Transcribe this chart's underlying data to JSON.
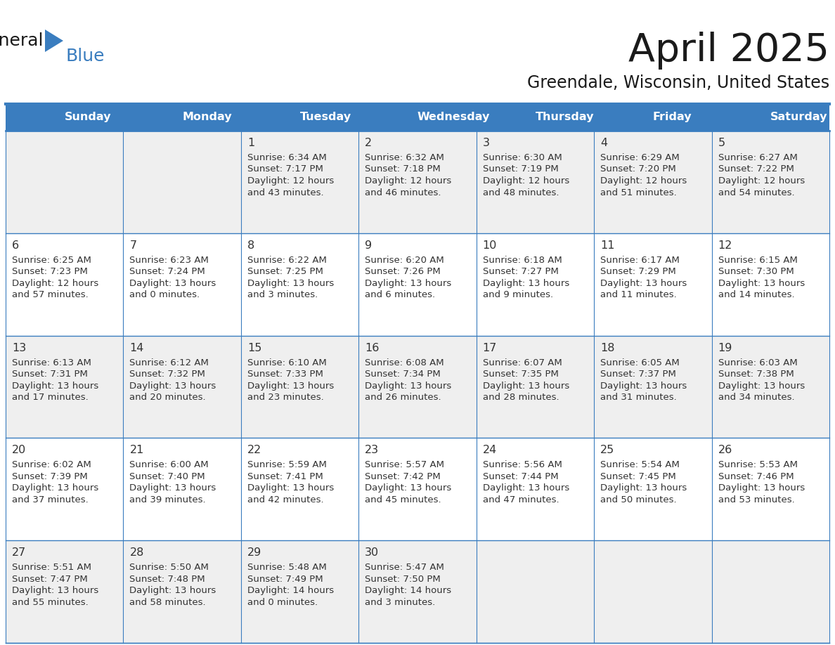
{
  "title": "April 2025",
  "subtitle": "Greendale, Wisconsin, United States",
  "header_bg_color": "#3a7dbf",
  "cell_bg_color_odd": "#efefef",
  "cell_bg_color_even": "#ffffff",
  "border_color": "#3a7dbf",
  "text_color": "#333333",
  "days_of_week": [
    "Sunday",
    "Monday",
    "Tuesday",
    "Wednesday",
    "Thursday",
    "Friday",
    "Saturday"
  ],
  "calendar_data": [
    [
      {
        "day": "",
        "lines": []
      },
      {
        "day": "",
        "lines": []
      },
      {
        "day": "1",
        "lines": [
          "Sunrise: 6:34 AM",
          "Sunset: 7:17 PM",
          "Daylight: 12 hours",
          "and 43 minutes."
        ]
      },
      {
        "day": "2",
        "lines": [
          "Sunrise: 6:32 AM",
          "Sunset: 7:18 PM",
          "Daylight: 12 hours",
          "and 46 minutes."
        ]
      },
      {
        "day": "3",
        "lines": [
          "Sunrise: 6:30 AM",
          "Sunset: 7:19 PM",
          "Daylight: 12 hours",
          "and 48 minutes."
        ]
      },
      {
        "day": "4",
        "lines": [
          "Sunrise: 6:29 AM",
          "Sunset: 7:20 PM",
          "Daylight: 12 hours",
          "and 51 minutes."
        ]
      },
      {
        "day": "5",
        "lines": [
          "Sunrise: 6:27 AM",
          "Sunset: 7:22 PM",
          "Daylight: 12 hours",
          "and 54 minutes."
        ]
      }
    ],
    [
      {
        "day": "6",
        "lines": [
          "Sunrise: 6:25 AM",
          "Sunset: 7:23 PM",
          "Daylight: 12 hours",
          "and 57 minutes."
        ]
      },
      {
        "day": "7",
        "lines": [
          "Sunrise: 6:23 AM",
          "Sunset: 7:24 PM",
          "Daylight: 13 hours",
          "and 0 minutes."
        ]
      },
      {
        "day": "8",
        "lines": [
          "Sunrise: 6:22 AM",
          "Sunset: 7:25 PM",
          "Daylight: 13 hours",
          "and 3 minutes."
        ]
      },
      {
        "day": "9",
        "lines": [
          "Sunrise: 6:20 AM",
          "Sunset: 7:26 PM",
          "Daylight: 13 hours",
          "and 6 minutes."
        ]
      },
      {
        "day": "10",
        "lines": [
          "Sunrise: 6:18 AM",
          "Sunset: 7:27 PM",
          "Daylight: 13 hours",
          "and 9 minutes."
        ]
      },
      {
        "day": "11",
        "lines": [
          "Sunrise: 6:17 AM",
          "Sunset: 7:29 PM",
          "Daylight: 13 hours",
          "and 11 minutes."
        ]
      },
      {
        "day": "12",
        "lines": [
          "Sunrise: 6:15 AM",
          "Sunset: 7:30 PM",
          "Daylight: 13 hours",
          "and 14 minutes."
        ]
      }
    ],
    [
      {
        "day": "13",
        "lines": [
          "Sunrise: 6:13 AM",
          "Sunset: 7:31 PM",
          "Daylight: 13 hours",
          "and 17 minutes."
        ]
      },
      {
        "day": "14",
        "lines": [
          "Sunrise: 6:12 AM",
          "Sunset: 7:32 PM",
          "Daylight: 13 hours",
          "and 20 minutes."
        ]
      },
      {
        "day": "15",
        "lines": [
          "Sunrise: 6:10 AM",
          "Sunset: 7:33 PM",
          "Daylight: 13 hours",
          "and 23 minutes."
        ]
      },
      {
        "day": "16",
        "lines": [
          "Sunrise: 6:08 AM",
          "Sunset: 7:34 PM",
          "Daylight: 13 hours",
          "and 26 minutes."
        ]
      },
      {
        "day": "17",
        "lines": [
          "Sunrise: 6:07 AM",
          "Sunset: 7:35 PM",
          "Daylight: 13 hours",
          "and 28 minutes."
        ]
      },
      {
        "day": "18",
        "lines": [
          "Sunrise: 6:05 AM",
          "Sunset: 7:37 PM",
          "Daylight: 13 hours",
          "and 31 minutes."
        ]
      },
      {
        "day": "19",
        "lines": [
          "Sunrise: 6:03 AM",
          "Sunset: 7:38 PM",
          "Daylight: 13 hours",
          "and 34 minutes."
        ]
      }
    ],
    [
      {
        "day": "20",
        "lines": [
          "Sunrise: 6:02 AM",
          "Sunset: 7:39 PM",
          "Daylight: 13 hours",
          "and 37 minutes."
        ]
      },
      {
        "day": "21",
        "lines": [
          "Sunrise: 6:00 AM",
          "Sunset: 7:40 PM",
          "Daylight: 13 hours",
          "and 39 minutes."
        ]
      },
      {
        "day": "22",
        "lines": [
          "Sunrise: 5:59 AM",
          "Sunset: 7:41 PM",
          "Daylight: 13 hours",
          "and 42 minutes."
        ]
      },
      {
        "day": "23",
        "lines": [
          "Sunrise: 5:57 AM",
          "Sunset: 7:42 PM",
          "Daylight: 13 hours",
          "and 45 minutes."
        ]
      },
      {
        "day": "24",
        "lines": [
          "Sunrise: 5:56 AM",
          "Sunset: 7:44 PM",
          "Daylight: 13 hours",
          "and 47 minutes."
        ]
      },
      {
        "day": "25",
        "lines": [
          "Sunrise: 5:54 AM",
          "Sunset: 7:45 PM",
          "Daylight: 13 hours",
          "and 50 minutes."
        ]
      },
      {
        "day": "26",
        "lines": [
          "Sunrise: 5:53 AM",
          "Sunset: 7:46 PM",
          "Daylight: 13 hours",
          "and 53 minutes."
        ]
      }
    ],
    [
      {
        "day": "27",
        "lines": [
          "Sunrise: 5:51 AM",
          "Sunset: 7:47 PM",
          "Daylight: 13 hours",
          "and 55 minutes."
        ]
      },
      {
        "day": "28",
        "lines": [
          "Sunrise: 5:50 AM",
          "Sunset: 7:48 PM",
          "Daylight: 13 hours",
          "and 58 minutes."
        ]
      },
      {
        "day": "29",
        "lines": [
          "Sunrise: 5:48 AM",
          "Sunset: 7:49 PM",
          "Daylight: 14 hours",
          "and 0 minutes."
        ]
      },
      {
        "day": "30",
        "lines": [
          "Sunrise: 5:47 AM",
          "Sunset: 7:50 PM",
          "Daylight: 14 hours",
          "and 3 minutes."
        ]
      },
      {
        "day": "",
        "lines": []
      },
      {
        "day": "",
        "lines": []
      },
      {
        "day": "",
        "lines": []
      }
    ]
  ]
}
